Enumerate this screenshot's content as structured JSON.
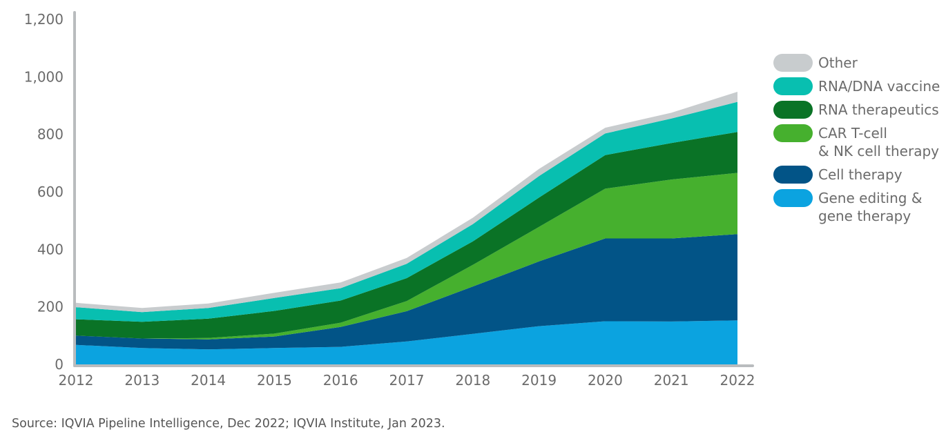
{
  "chart_data": {
    "type": "area",
    "stacked": true,
    "x": [
      "2012",
      "2013",
      "2014",
      "2015",
      "2016",
      "2017",
      "2018",
      "2019",
      "2020",
      "2021",
      "2022"
    ],
    "ylim": [
      0,
      1200
    ],
    "yticks": [
      "0",
      "200",
      "400",
      "600",
      "800",
      "1,000",
      "1,200"
    ],
    "ytick_values": [
      0,
      200,
      400,
      600,
      800,
      1000,
      1200
    ],
    "grid": false,
    "legend_position": "right",
    "series": [
      {
        "name": "Gene editing &\ngene therapy",
        "color": "#0ba3e0",
        "values": [
          68,
          57,
          52,
          57,
          61,
          80,
          106,
          133,
          150,
          149,
          153
        ]
      },
      {
        "name": "Cell therapy",
        "color": "#025487",
        "values": [
          32,
          33,
          35,
          40,
          69,
          105,
          165,
          225,
          288,
          289,
          300
        ]
      },
      {
        "name": "CAR T-cell\n& NK cell therapy",
        "color": "#46b02e",
        "values": [
          0,
          0,
          5,
          10,
          15,
          35,
          75,
          120,
          173,
          205,
          213
        ]
      },
      {
        "name": "RNA therapeutics",
        "color": "#0a7326",
        "values": [
          57,
          58,
          67,
          79,
          77,
          80,
          82,
          102,
          117,
          127,
          142
        ]
      },
      {
        "name": "RNA/DNA vaccine",
        "color": "#08bfb0",
        "values": [
          42,
          34,
          37,
          45,
          43,
          50,
          60,
          75,
          75,
          85,
          105
        ]
      },
      {
        "name": "Other",
        "color": "#c8ccce",
        "values": [
          15,
          14,
          16,
          18,
          20,
          20,
          22,
          25,
          20,
          20,
          35
        ]
      }
    ],
    "source": "Source: IQVIA Pipeline Intelligence, Dec 2022; IQVIA Institute, Jan 2023."
  }
}
